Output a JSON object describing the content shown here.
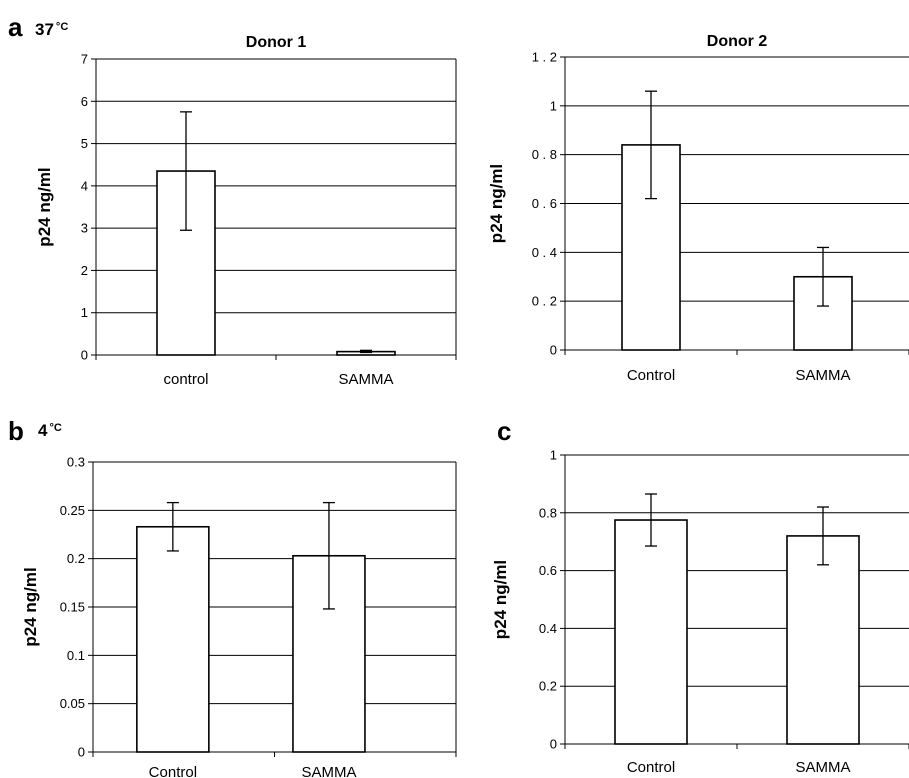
{
  "panel_labels": {
    "a": {
      "letter": "a",
      "temp_num": "37",
      "temp_unit": "°C"
    },
    "b": {
      "letter": "b",
      "temp_num": "4",
      "temp_unit": "°C"
    },
    "c": {
      "letter": "c"
    }
  },
  "chart_data": [
    {
      "id": "a-donor1",
      "type": "bar",
      "title": "Donor 1",
      "ylabel": "p24 ng/ml",
      "categories": [
        "control",
        "SAMMA"
      ],
      "values": [
        4.35,
        0.08
      ],
      "error_low": [
        2.95,
        0.06
      ],
      "error_high": [
        5.75,
        0.11
      ],
      "ylim": [
        0,
        7
      ],
      "yticks": [
        0,
        1,
        2,
        3,
        4,
        5,
        6,
        7
      ],
      "ytick_labels": [
        "0",
        "1",
        "2",
        "3",
        "4",
        "5",
        "6",
        "7"
      ],
      "grid": true
    },
    {
      "id": "a-donor2",
      "type": "bar",
      "title": "Donor 2",
      "ylabel": "p24 ng/ml",
      "categories": [
        "Control",
        "SAMMA"
      ],
      "values": [
        0.84,
        0.3
      ],
      "error_low": [
        0.62,
        0.18
      ],
      "error_high": [
        1.06,
        0.42
      ],
      "ylim": [
        0,
        1.2
      ],
      "yticks": [
        0,
        0.2,
        0.4,
        0.6,
        0.8,
        1,
        1.2
      ],
      "ytick_labels": [
        "0",
        "0 . 2",
        "0 . 4",
        "0 . 6",
        "0 . 8",
        "1",
        "1 . 2"
      ],
      "grid": true
    },
    {
      "id": "b-4c",
      "type": "bar",
      "title": "",
      "ylabel": "p24 ng/ml",
      "categories": [
        "Control",
        "SAMMA"
      ],
      "values": [
        0.233,
        0.203
      ],
      "error_low": [
        0.208,
        0.148
      ],
      "error_high": [
        0.258,
        0.258
      ],
      "ylim": [
        0,
        0.3
      ],
      "yticks": [
        0,
        0.05,
        0.1,
        0.15,
        0.2,
        0.25,
        0.3
      ],
      "ytick_labels": [
        "0",
        "0.05",
        "0.1",
        "0.15",
        "0.2",
        "0.25",
        "0.3"
      ],
      "grid": true
    },
    {
      "id": "c",
      "type": "bar",
      "title": "",
      "ylabel": "p24 ng/ml",
      "categories": [
        "Control",
        "SAMMA"
      ],
      "values": [
        0.775,
        0.72
      ],
      "error_low": [
        0.685,
        0.62
      ],
      "error_high": [
        0.865,
        0.82
      ],
      "ylim": [
        0,
        1
      ],
      "yticks": [
        0,
        0.2,
        0.4,
        0.6,
        0.8,
        1
      ],
      "ytick_labels": [
        "0",
        "0.2",
        "0.4",
        "0.6",
        "0.8",
        "1"
      ],
      "grid": true
    }
  ]
}
